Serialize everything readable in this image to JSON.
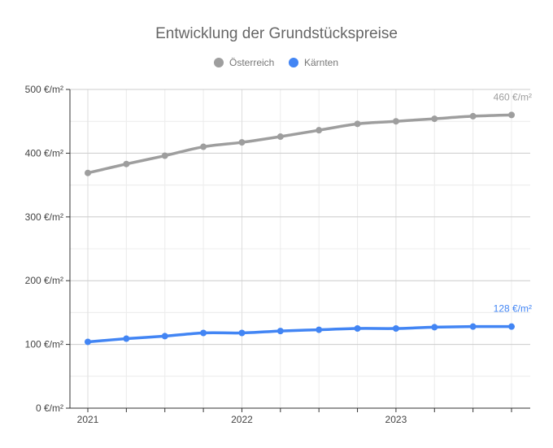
{
  "chart_data": {
    "type": "line",
    "title": "Entwicklung der Grundstückspreise",
    "xlabel": "",
    "ylabel": "",
    "x": [
      "2021-01",
      "2021-04",
      "2021-07",
      "2021-10",
      "2022-01",
      "2022-04",
      "2022-07",
      "2022-10",
      "2023-01",
      "2023-04",
      "2023-07",
      "2023-10"
    ],
    "x_ticks": [
      {
        "x": "2021-01",
        "label": "2021"
      },
      {
        "x": "2022-01",
        "label": "2022"
      },
      {
        "x": "2023-01",
        "label": "2023"
      }
    ],
    "ylim": [
      0,
      500
    ],
    "y_ticks": [
      {
        "value": 0,
        "label": "0 €/m²"
      },
      {
        "value": 100,
        "label": "100 €/m²"
      },
      {
        "value": 200,
        "label": "200 €/m²"
      },
      {
        "value": 300,
        "label": "300 €/m²"
      },
      {
        "value": 400,
        "label": "400 €/m²"
      },
      {
        "value": 500,
        "label": "500 €/m²"
      }
    ],
    "grid": true,
    "legend_position": "top-center",
    "series": [
      {
        "name": "Österreich",
        "color": "#9e9e9e",
        "values": [
          369,
          383,
          396,
          410,
          417,
          426,
          436,
          446,
          450,
          454,
          458,
          460
        ],
        "end_label": "460 €/m²"
      },
      {
        "name": "Kärnten",
        "color": "#4285f4",
        "values": [
          104,
          109,
          113,
          118,
          118,
          121,
          123,
          125,
          125,
          127,
          128,
          128
        ],
        "end_label": "128 €/m²"
      }
    ]
  }
}
